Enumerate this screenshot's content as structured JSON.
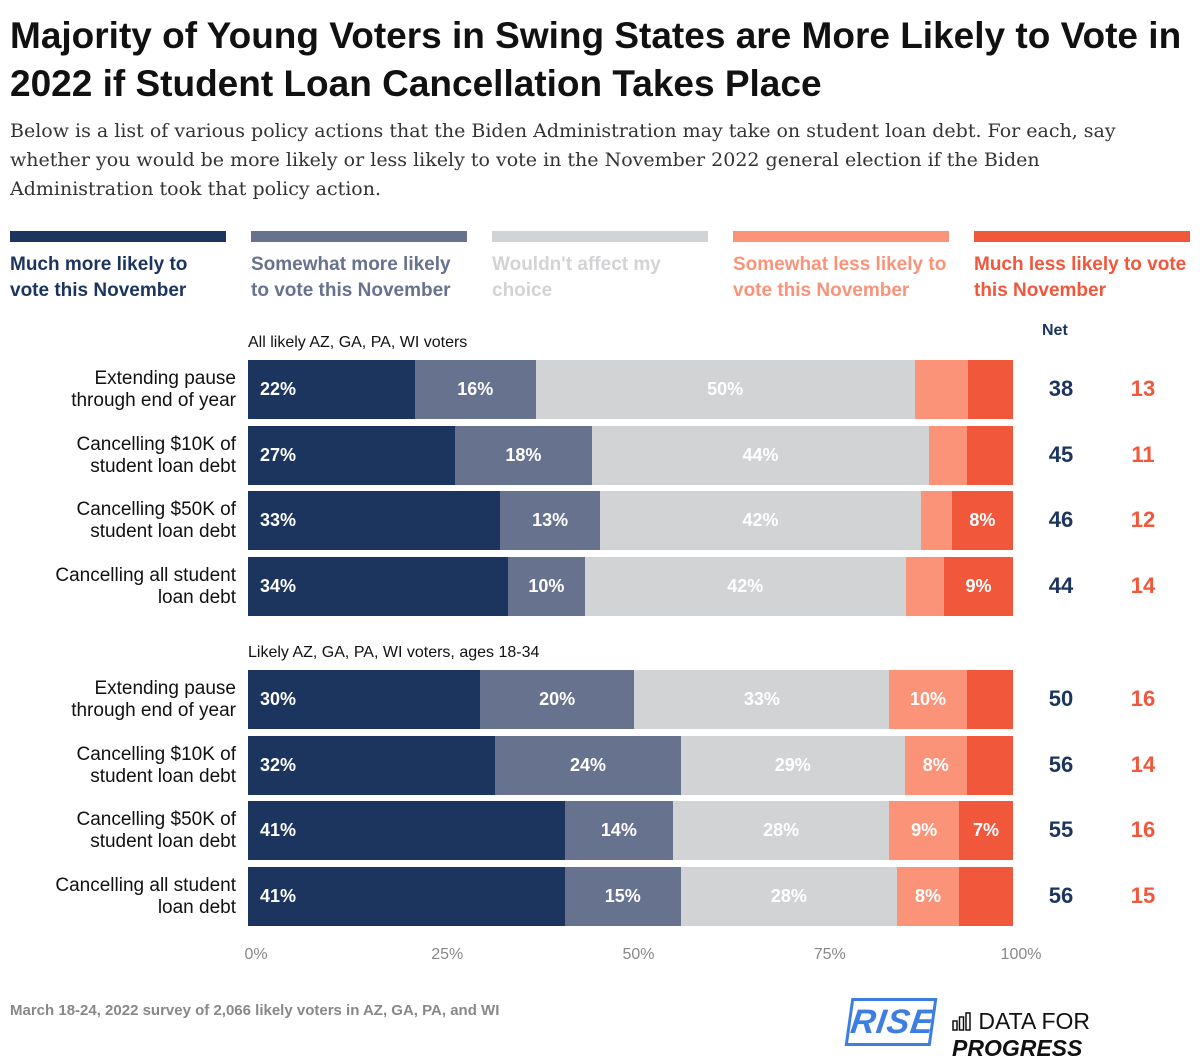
{
  "chart_data": {
    "type": "bar",
    "orientation": "horizontal-stacked",
    "title": "Majority of Young Voters in Swing States are More Likely to Vote in 2022 if Student Loan Cancellation Takes Place",
    "subtitle": "Below is a list of various policy actions that the Biden Administration may take on student loan debt. For each, say whether you would be more likely or less likely to vote in the November 2022 general election if the Biden Administration took that policy action.",
    "legend": [
      {
        "name": "Much more likely to vote this November",
        "color": "#1c355e"
      },
      {
        "name": "Somewhat more likely to vote this November",
        "color": "#67728f"
      },
      {
        "name": "Wouldn't affect my choice",
        "color": "#d2d3d5"
      },
      {
        "name": "Somewhat less likely to vote this November",
        "color": "#fb9378"
      },
      {
        "name": "Much less likely to vote this November",
        "color": "#f0573b"
      }
    ],
    "legend_placement": "top",
    "net_header": "Net",
    "xlim": [
      0,
      100
    ],
    "xticks": [
      "0%",
      "25%",
      "50%",
      "75%",
      "100%"
    ],
    "groups": [
      {
        "name": "All likely AZ, GA, PA, WI voters",
        "rows": [
          {
            "label": [
              "Extending pause",
              "through end of year"
            ],
            "values": [
              22,
              16,
              50,
              7,
              6
            ],
            "labels": [
              "22%",
              "16%",
              "50%",
              "",
              ""
            ],
            "net_more": "38",
            "net_less": "13"
          },
          {
            "label": [
              "Cancelling $10K of",
              "student loan debt"
            ],
            "values": [
              27,
              18,
              44,
              5,
              6
            ],
            "labels": [
              "27%",
              "18%",
              "44%",
              "",
              ""
            ],
            "net_more": "45",
            "net_less": "11"
          },
          {
            "label": [
              "Cancelling $50K of",
              "student loan debt"
            ],
            "values": [
              33,
              13,
              42,
              4,
              8
            ],
            "labels": [
              "33%",
              "13%",
              "42%",
              "",
              "8%"
            ],
            "net_more": "46",
            "net_less": "12"
          },
          {
            "label": [
              "Cancelling all student",
              "loan debt"
            ],
            "values": [
              34,
              10,
              42,
              5,
              9
            ],
            "labels": [
              "34%",
              "10%",
              "42%",
              "",
              "9%"
            ],
            "net_more": "44",
            "net_less": "14"
          }
        ]
      },
      {
        "name": "Likely AZ, GA, PA, WI voters, ages 18-34",
        "rows": [
          {
            "label": [
              "Extending pause",
              "through end of year"
            ],
            "values": [
              30,
              20,
              33,
              10,
              6
            ],
            "labels": [
              "30%",
              "20%",
              "33%",
              "10%",
              ""
            ],
            "net_more": "50",
            "net_less": "16"
          },
          {
            "label": [
              "Cancelling $10K of",
              "student loan debt"
            ],
            "values": [
              32,
              24,
              29,
              8,
              6
            ],
            "labels": [
              "32%",
              "24%",
              "29%",
              "8%",
              ""
            ],
            "net_more": "56",
            "net_less": "14"
          },
          {
            "label": [
              "Cancelling $50K of",
              "student loan debt"
            ],
            "values": [
              41,
              14,
              28,
              9,
              7
            ],
            "labels": [
              "41%",
              "14%",
              "28%",
              "9%",
              "7%"
            ],
            "net_more": "55",
            "net_less": "16"
          },
          {
            "label": [
              "Cancelling all student",
              "loan debt"
            ],
            "values": [
              41,
              15,
              28,
              8,
              7
            ],
            "labels": [
              "41%",
              "15%",
              "28%",
              "8%",
              ""
            ],
            "net_more": "56",
            "net_less": "15"
          }
        ]
      }
    ]
  },
  "footer": {
    "source": "March 18-24, 2022 survey of 2,066 likely voters in AZ, GA, PA, and WI",
    "logo_rise": "RISE",
    "logo_dfp_plain": "DATA FOR",
    "logo_dfp_bold": "PROGRESS"
  }
}
